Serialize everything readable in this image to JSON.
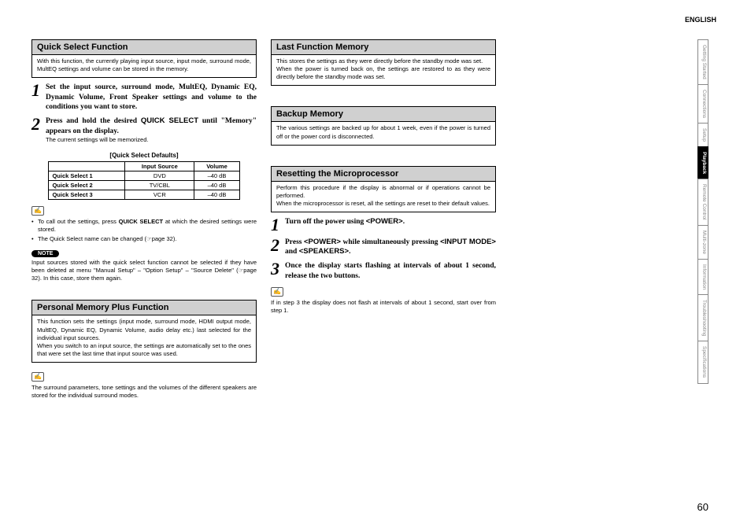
{
  "header": {
    "language": "ENGLISH"
  },
  "page_number": "60",
  "side_tabs": [
    {
      "label": "Getting Started",
      "active": false
    },
    {
      "label": "Connections",
      "active": false
    },
    {
      "label": "Setup",
      "active": false
    },
    {
      "label": "Playback",
      "active": true
    },
    {
      "label": "Remote Control",
      "active": false
    },
    {
      "label": "Multi-zone",
      "active": false
    },
    {
      "label": "Information",
      "active": false
    },
    {
      "label": "Troubleshooting",
      "active": false
    },
    {
      "label": "Specifications",
      "active": false
    }
  ],
  "col1": {
    "quick_select": {
      "title": "Quick Select Function",
      "body": "With this function, the currently playing input source, input mode, surround mode, MultEQ settings and volume can be stored in the memory.",
      "step1": "Set the input source, surround mode, MultEQ, Dynamic EQ, Dynamic Volume, Front Speaker settings and volume to the conditions you want to store.",
      "step2_a": "Press and hold the desired ",
      "step2_b": "QUICK SELECT",
      "step2_c": " until \"Memory\" appears on the display.",
      "step2_note": "The current settings will be memorized.",
      "table_caption": "[Quick Select Defaults]",
      "table_headers": [
        "",
        "Input Source",
        "Volume"
      ],
      "table_rows": [
        [
          "Quick Select 1",
          "DVD",
          "–40 dB"
        ],
        [
          "Quick Select 2",
          "TV/CBL",
          "–40 dB"
        ],
        [
          "Quick Select 3",
          "VCR",
          "–40 dB"
        ]
      ],
      "bullet1_a": "To call out the settings, press ",
      "bullet1_b": "QUICK SELECT",
      "bullet1_c": " at which the desired settings were stored.",
      "bullet2": "The Quick Select name can be changed (☞page 32).",
      "note_label": "NOTE",
      "note_body": "Input sources stored with the quick select function cannot be selected if they have been deleted at menu \"Manual Setup\" – \"Option Setup\" – \"Source Delete\" (☞page 32). In this case, store them again."
    },
    "personal_memory": {
      "title": "Personal Memory Plus Function",
      "body": "This function sets the settings (input mode, surround mode, HDMI output mode, MultEQ, Dynamic EQ, Dynamic Volume, audio delay etc.) last selected for the individual input sources.\nWhen you switch to an input source, the settings are automatically set to the ones that were set the last time that input source was used.",
      "footer": "The surround parameters, tone settings and the volumes of the different speakers are stored for the individual surround modes."
    }
  },
  "col2": {
    "last_function": {
      "title": "Last Function Memory",
      "body": "This stores the settings as they were directly before the standby mode was set.\nWhen the power is turned back on, the settings are restored to as they were directly before the standby mode was set."
    },
    "backup": {
      "title": "Backup Memory",
      "body": "The various settings are backed up for about 1 week, even if the power is turned off or the power cord is disconnected."
    },
    "reset": {
      "title": "Resetting the Microprocessor",
      "body": "Perform this procedure if the display is abnormal or if operations cannot be performed.\nWhen the microprocessor is reset, all the settings are reset to their default values.",
      "step1_a": "Turn off the power using ",
      "step1_b": "<POWER>",
      "step1_c": ".",
      "step2_a": "Press ",
      "step2_b": "<POWER>",
      "step2_c": " while simultaneously pressing ",
      "step2_d": "<INPUT MODE>",
      "step2_e": " and ",
      "step2_f": "<SPEAKERS>",
      "step2_g": ".",
      "step3": "Once the display starts flashing at intervals of about 1 second, release the two buttons.",
      "footer": "If in step 3 the display does not flash at intervals of about 1 second, start over from step 1."
    }
  }
}
